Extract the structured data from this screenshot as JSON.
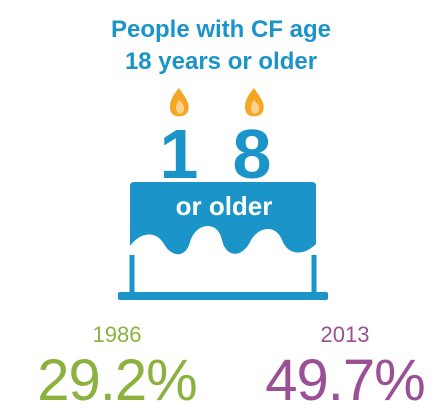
{
  "title": {
    "line1": "People with CF age",
    "line2": "18 years or older"
  },
  "cake": {
    "digit1": "1",
    "digit2": "8",
    "label": "or older",
    "icons": [
      "flame-icon",
      "candle-icon",
      "cake-icon"
    ]
  },
  "stats": [
    {
      "year": "1986",
      "value": "29.2%"
    },
    {
      "year": "2013",
      "value": "49.7%"
    }
  ],
  "colors": {
    "blue": "#1a94c9",
    "flame_outer": "#f5a623",
    "flame_inner": "#fbd38d",
    "green": "#8bb23f",
    "purple": "#9b4f96"
  }
}
